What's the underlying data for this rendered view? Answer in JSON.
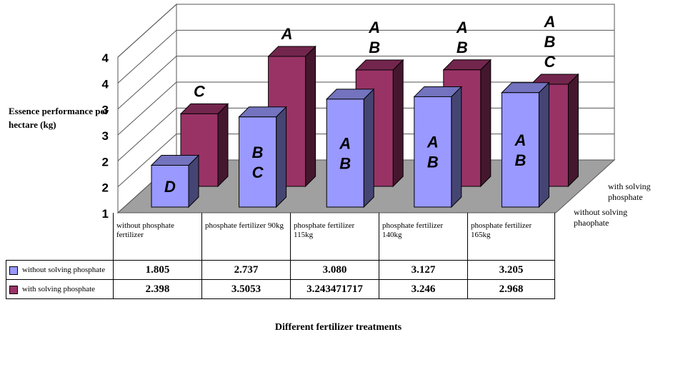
{
  "chart_data": {
    "type": "bar",
    "style": "3d-grouped-with-data-table",
    "title": "",
    "xlabel": "Different fertilizer treatments",
    "ylabel": "Essence performance per hectare (kg)",
    "y_tick_labels": [
      "1",
      "2",
      "2",
      "3",
      "3",
      "4",
      "4"
    ],
    "ylim": [
      1,
      4
    ],
    "grid": true,
    "legend_position": "table-left",
    "categories": [
      "without phosphate fertilizer",
      "phosphate fertilizer 90kg",
      "phosphate fertilizer 115kg",
      "phosphate fertilizer 140kg",
      "phosphate fertilizer 165kg"
    ],
    "depth_labels": [
      "without solving phaophate",
      "with solving phosphate"
    ],
    "series": [
      {
        "name": "without solving phosphate",
        "color": "#9999ff",
        "values": [
          1.805,
          2.737,
          3.08,
          3.127,
          3.205
        ],
        "value_labels": [
          "1.805",
          "2.737",
          "3.080",
          "3.127",
          "3.205"
        ],
        "letters": [
          "D",
          "B C",
          "A B",
          "A B",
          "A B"
        ]
      },
      {
        "name": "with solving phosphate",
        "color": "#993366",
        "values": [
          2.398,
          3.5053,
          3.243471717,
          3.246,
          2.968
        ],
        "value_labels": [
          "2.398",
          "3.5053",
          "3.243471717",
          "3.246",
          "2.968"
        ],
        "letters": [
          "C",
          "A",
          "A B",
          "A B",
          "A B C"
        ]
      }
    ]
  }
}
